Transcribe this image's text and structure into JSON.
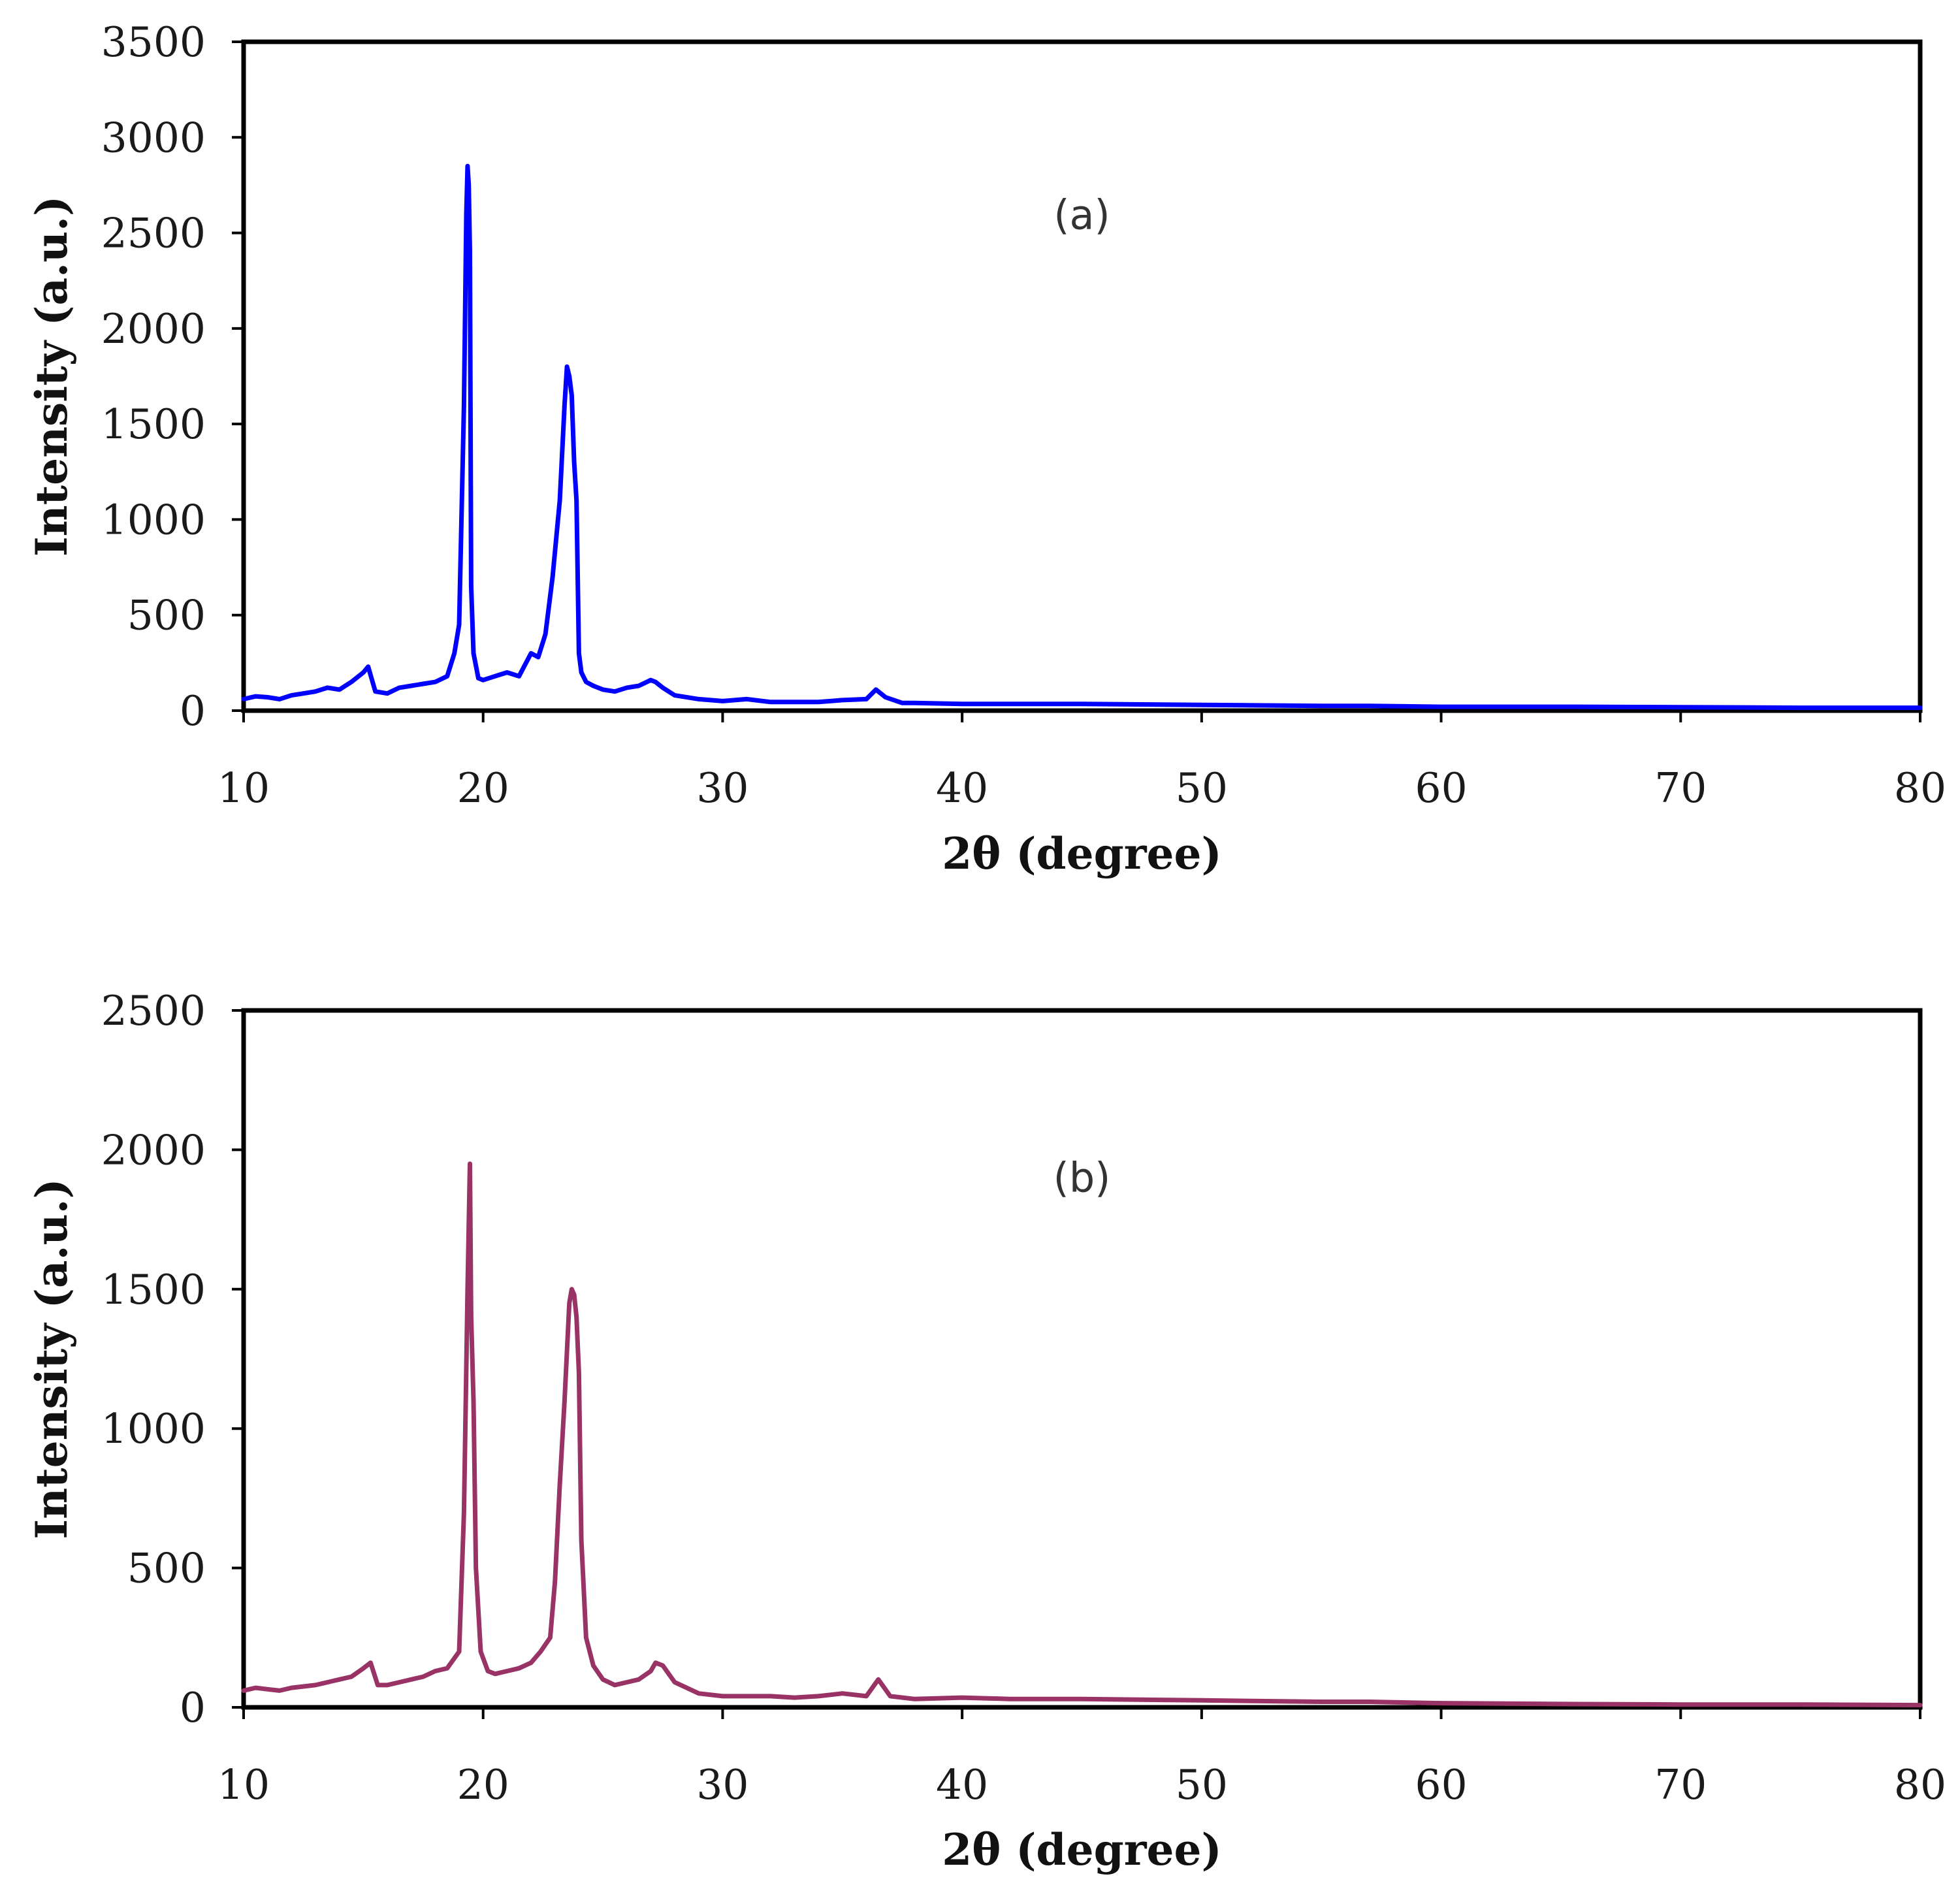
{
  "chart_data": [
    {
      "type": "line",
      "panel_label": "(a)",
      "xlabel": "2θ (degree)",
      "ylabel": "Intensity (a.u.)",
      "xlim": [
        10,
        80
      ],
      "ylim": [
        0,
        3500
      ],
      "xticks": [
        10,
        20,
        30,
        40,
        50,
        60,
        70,
        80
      ],
      "yticks": [
        0,
        500,
        1000,
        1500,
        2000,
        2500,
        3000,
        3500
      ],
      "grid": false,
      "series": [
        {
          "name": "(a)",
          "color": "#0000ff",
          "x": [
            10,
            10.5,
            11,
            11.5,
            12,
            12.5,
            13,
            13.5,
            14,
            14.5,
            15,
            15.2,
            15.5,
            16,
            16.5,
            17,
            17.5,
            18,
            18.5,
            18.8,
            19.0,
            19.2,
            19.3,
            19.35,
            19.4,
            19.45,
            19.5,
            19.6,
            19.8,
            20.0,
            20.5,
            21,
            21.5,
            22,
            22.3,
            22.6,
            22.9,
            23.2,
            23.4,
            23.5,
            23.6,
            23.7,
            23.8,
            23.9,
            24.0,
            24.1,
            24.3,
            24.6,
            25,
            25.5,
            26,
            26.5,
            27,
            27.2,
            27.5,
            28,
            29,
            30,
            31,
            32,
            33,
            34,
            35,
            36,
            36.4,
            36.8,
            37.5,
            38,
            40,
            42,
            45,
            50,
            55,
            57,
            60,
            65,
            70,
            75,
            80
          ],
          "y": [
            60,
            75,
            70,
            60,
            80,
            90,
            100,
            120,
            110,
            150,
            200,
            230,
            100,
            90,
            120,
            130,
            140,
            150,
            180,
            300,
            450,
            1600,
            2600,
            2850,
            2750,
            2400,
            650,
            300,
            170,
            160,
            180,
            200,
            180,
            300,
            280,
            400,
            700,
            1100,
            1600,
            1800,
            1750,
            1650,
            1300,
            1100,
            300,
            200,
            150,
            130,
            110,
            100,
            120,
            130,
            160,
            150,
            120,
            80,
            60,
            50,
            60,
            45,
            45,
            45,
            55,
            60,
            110,
            70,
            40,
            40,
            35,
            35,
            35,
            30,
            25,
            25,
            20,
            20,
            18,
            15,
            15
          ]
        }
      ]
    },
    {
      "type": "line",
      "panel_label": "(b)",
      "xlabel": "2θ (degree)",
      "ylabel": "Intensity (a.u.)",
      "xlim": [
        10,
        80
      ],
      "ylim": [
        0,
        2500
      ],
      "xticks": [
        10,
        20,
        30,
        40,
        50,
        60,
        70,
        80
      ],
      "yticks": [
        0,
        500,
        1000,
        1500,
        2000,
        2500
      ],
      "grid": false,
      "series": [
        {
          "name": "(b)",
          "color": "#993366",
          "x": [
            10,
            10.5,
            11,
            11.5,
            12,
            12.5,
            13,
            13.5,
            14,
            14.5,
            15,
            15.3,
            15.6,
            16,
            16.5,
            17,
            17.5,
            18,
            18.5,
            19.0,
            19.2,
            19.35,
            19.45,
            19.5,
            19.6,
            19.7,
            19.9,
            20.2,
            20.5,
            21,
            21.5,
            22,
            22.4,
            22.8,
            23.0,
            23.2,
            23.4,
            23.6,
            23.7,
            23.8,
            23.9,
            24.0,
            24.1,
            24.3,
            24.6,
            25,
            25.5,
            26,
            26.5,
            27,
            27.2,
            27.5,
            28,
            29,
            30,
            31,
            32,
            33,
            34,
            35,
            36,
            36.5,
            37,
            38,
            40,
            42,
            45,
            50,
            55,
            57,
            60,
            65,
            70,
            75,
            80
          ],
          "y": [
            60,
            70,
            65,
            60,
            70,
            75,
            80,
            90,
            100,
            110,
            140,
            160,
            80,
            80,
            90,
            100,
            110,
            130,
            140,
            200,
            700,
            1500,
            1950,
            1400,
            1100,
            500,
            200,
            130,
            120,
            130,
            140,
            160,
            200,
            250,
            450,
            800,
            1100,
            1450,
            1500,
            1480,
            1400,
            1200,
            600,
            250,
            150,
            100,
            80,
            90,
            100,
            130,
            160,
            150,
            90,
            50,
            40,
            40,
            40,
            35,
            40,
            50,
            40,
            100,
            40,
            30,
            35,
            30,
            30,
            25,
            20,
            20,
            15,
            12,
            10,
            10,
            8
          ]
        }
      ]
    }
  ]
}
